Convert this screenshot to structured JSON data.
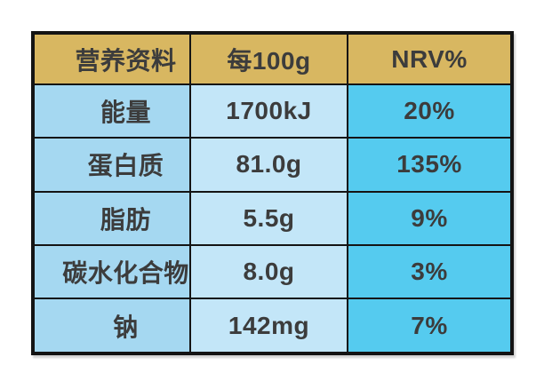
{
  "table": {
    "title_semantic": "nutrition-information-table",
    "headers": {
      "nutrient": "营养资料",
      "per100g": "每100g",
      "nrv": "NRV%"
    },
    "rows": [
      {
        "nutrient": "能量",
        "per100g": "1700kJ",
        "nrv": "20%"
      },
      {
        "nutrient": "蛋白质",
        "per100g": "81.0g",
        "nrv": "135%"
      },
      {
        "nutrient": "脂肪",
        "per100g": "5.5g",
        "nrv": "9%"
      },
      {
        "nutrient": "碳水化合物",
        "per100g": "8.0g",
        "nrv": "3%"
      },
      {
        "nutrient": "钠",
        "per100g": "142mg",
        "nrv": "7%"
      }
    ],
    "colors": {
      "page_bg": "#ffffff",
      "header_bg": "#d8b761",
      "col1_bg": "#a5d8f1",
      "col2_bg": "#c3e6f8",
      "col3_bg": "#55cbef",
      "border": "#141414",
      "text": "#3c3c3c"
    }
  }
}
